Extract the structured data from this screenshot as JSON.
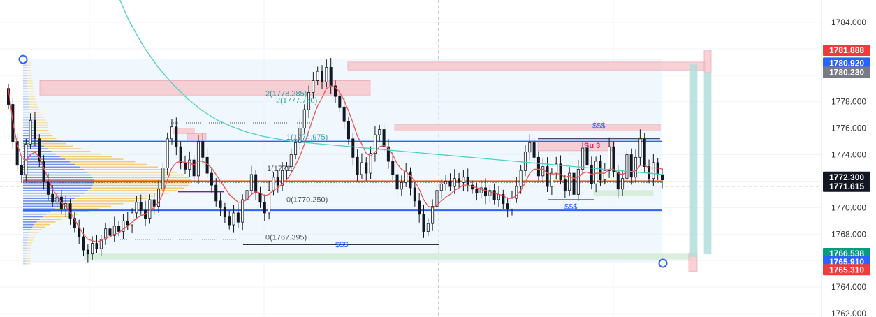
{
  "chart_data": {
    "type": "line",
    "symbol_context": "price chart with volume profile",
    "y_axis": {
      "ticks": [
        "1784.000",
        "1782.000",
        "1780.000",
        "1778.000",
        "1776.000",
        "1774.000",
        "1772.000",
        "1770.000",
        "1768.000",
        "1766.000",
        "1764.000",
        "1762.000"
      ],
      "range": [
        1761.5,
        1785.3
      ]
    },
    "price_tags": [
      {
        "label": "1781.888",
        "value": 1781.888,
        "color": "#ef3b3b"
      },
      {
        "label": "1780.920",
        "value": 1780.92,
        "color": "#2962ff"
      },
      {
        "label": "1780.230",
        "value": 1780.23,
        "color": "#787b86"
      },
      {
        "label": "1772.300",
        "value": 1772.3,
        "color": "#131722"
      },
      {
        "label": "1771.615",
        "value": 1771.615,
        "color": "#131722"
      },
      {
        "label": "1766.538",
        "value": 1766.538,
        "color": "#089981"
      },
      {
        "label": "1765.910",
        "value": 1765.91,
        "color": "#2962ff"
      },
      {
        "label": "1765.310",
        "value": 1765.31,
        "color": "#ef3b3b"
      }
    ],
    "levels": [
      {
        "label": "2(1778.285)",
        "value": 1778.285
      },
      {
        "label": "2(1777.760)",
        "value": 1777.76
      },
      {
        "label": "1(1774.975)",
        "value": 1774.975
      },
      {
        "label": "1(1772.",
        "value": 1772.6
      },
      {
        "label": "0(1770.250)",
        "value": 1770.25
      },
      {
        "label": "0(1767.395)",
        "value": 1767.395
      }
    ],
    "annotations": [
      {
        "text": "$$$",
        "kind": "liquidity"
      },
      {
        "text": "$$$",
        "kind": "liquidity"
      },
      {
        "text": "$$$",
        "kind": "liquidity"
      },
      {
        "text": "Su 3",
        "kind": "signal"
      }
    ],
    "range_lines": [
      {
        "value": 1775.0,
        "color": "#2962ff"
      },
      {
        "value": 1769.8,
        "color": "#2962ff"
      },
      {
        "value": 1772.0,
        "color": "#e65100"
      }
    ],
    "close_series": [
      1777.8,
      1775.0,
      1773.2,
      1772.5,
      1774.8,
      1776.6,
      1775.2,
      1773.5,
      1772.0,
      1771.0,
      1770.4,
      1770.8,
      1769.9,
      1770.3,
      1769.2,
      1768.5,
      1767.8,
      1766.8,
      1766.5,
      1767.3,
      1766.9,
      1767.6,
      1768.4,
      1767.9,
      1768.6,
      1768.2,
      1769.0,
      1768.7,
      1769.6,
      1770.4,
      1769.8,
      1769.2,
      1770.6,
      1770.1,
      1771.4,
      1773.0,
      1775.2,
      1776.1,
      1774.6,
      1773.4,
      1772.9,
      1773.6,
      1772.4,
      1775.0,
      1773.8,
      1772.6,
      1771.7,
      1770.5,
      1770.0,
      1769.3,
      1768.7,
      1769.6,
      1768.9,
      1770.6,
      1771.3,
      1772.5,
      1771.1,
      1770.4,
      1769.6,
      1771.3,
      1772.3,
      1771.7,
      1772.8,
      1773.1,
      1774.0,
      1774.9,
      1776.0,
      1777.4,
      1778.7,
      1779.6,
      1780.3,
      1779.5,
      1780.6,
      1779.2,
      1778.4,
      1777.6,
      1776.5,
      1775.2,
      1773.8,
      1772.5,
      1773.4,
      1772.6,
      1774.1,
      1775.5,
      1775.9,
      1774.6,
      1773.5,
      1772.5,
      1771.4,
      1771.9,
      1772.7,
      1771.5,
      1770.5,
      1769.5,
      1768.2,
      1768.8,
      1770.1,
      1771.3,
      1771.8,
      1772.0,
      1771.6,
      1772.2,
      1771.9,
      1772.3,
      1771.7,
      1771.4,
      1771.1,
      1771.5,
      1770.9,
      1771.3,
      1770.6,
      1771.0,
      1770.3,
      1769.9,
      1770.7,
      1771.6,
      1772.8,
      1774.2,
      1774.9,
      1773.8,
      1772.4,
      1773.1,
      1771.6,
      1772.6,
      1773.3,
      1772.1,
      1771.3,
      1772.6,
      1771.0,
      1772.9,
      1774.5,
      1773.2,
      1771.8,
      1773.5,
      1772.1,
      1772.8,
      1774.6,
      1772.7,
      1771.4,
      1772.2,
      1774.0,
      1772.3,
      1773.8,
      1775.2,
      1773.1,
      1772.2,
      1773.4,
      1772.5,
      1772.1
    ],
    "sma_red": [
      1779.0,
      1776.5,
      1774.8,
      1773.8,
      1773.6,
      1774.0,
      1774.2,
      1773.8,
      1773.0,
      1772.2,
      1771.4,
      1770.9,
      1770.4,
      1770.1,
      1769.6,
      1769.1,
      1768.5,
      1768.0,
      1767.6,
      1767.5,
      1767.4,
      1767.5,
      1767.7,
      1767.8,
      1768.0,
      1768.1,
      1768.4,
      1768.6,
      1768.9,
      1769.2,
      1769.4,
      1769.5,
      1769.8,
      1770.0,
      1770.4,
      1771.1,
      1772.1,
      1773.0,
      1773.4,
      1773.5,
      1773.4,
      1773.4,
      1773.2,
      1773.5,
      1773.5,
      1773.3,
      1773.0,
      1772.5,
      1772.0,
      1771.5,
      1771.0,
      1770.7,
      1770.4,
      1770.4,
      1770.6,
      1771.0,
      1771.2,
      1771.1,
      1770.9,
      1771.0,
      1771.3,
      1771.5,
      1771.8,
      1772.1,
      1772.6,
      1773.2,
      1773.9,
      1774.8,
      1775.8,
      1776.8,
      1777.7,
      1778.3,
      1779.0,
      1779.2,
      1779.1,
      1778.7,
      1778.1,
      1777.3,
      1776.4,
      1775.4,
      1774.8,
      1774.1,
      1773.9,
      1774.2,
      1774.6,
      1774.7,
      1774.5,
      1774.0,
      1773.3,
      1772.9,
      1772.7,
      1772.4,
      1772.0,
      1771.4,
      1770.6,
      1770.1,
      1770.0,
      1770.2,
      1770.5,
      1770.8,
      1771.0,
      1771.3,
      1771.5,
      1771.7,
      1771.7,
      1771.6,
      1771.5,
      1771.4,
      1771.3,
      1771.2,
      1771.1,
      1771.0,
      1770.9,
      1770.7,
      1770.7,
      1770.9,
      1771.3,
      1771.9,
      1772.6,
      1772.9,
      1772.9,
      1772.9,
      1772.6,
      1772.5,
      1772.6,
      1772.5,
      1772.3,
      1772.4,
      1772.2,
      1772.3,
      1772.6,
      1772.7,
      1772.5,
      1772.6,
      1772.6,
      1772.6,
      1772.9,
      1772.9,
      1772.6,
      1772.5,
      1772.7,
      1772.7,
      1772.8,
      1773.2,
      1773.2,
      1773.0,
      1773.0,
      1773.0,
      1772.9
    ],
    "ma_teal": [
      1794.5,
      1790.2,
      1786.8,
      1784.2,
      1782.2,
      1780.6,
      1779.3,
      1778.2,
      1777.3,
      1776.6,
      1776.1,
      1775.7,
      1775.4,
      1775.2,
      1775.0,
      1774.9,
      1774.8,
      1774.7,
      1774.6,
      1774.5,
      1774.4,
      1774.3,
      1774.2,
      1774.1,
      1774.0,
      1773.9,
      1773.8,
      1773.7,
      1773.6,
      1773.5,
      1773.4,
      1773.3,
      1773.2,
      1773.1,
      1773.0,
      1772.9,
      1772.8,
      1772.7,
      1772.6,
      1772.5
    ]
  }
}
